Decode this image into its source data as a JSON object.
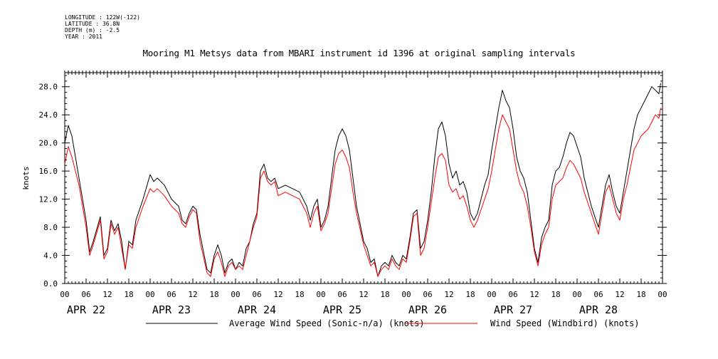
{
  "header": {
    "meta_lines": [
      "LONGITUDE : 122W(-122)",
      "LATITUDE : 36.8N",
      "DEPTH (m) : -2.5",
      "YEAR : 2011"
    ],
    "title": "Mooring M1 Metsys data from MBARI instrument id 1396 at original sampling intervals"
  },
  "chart_data": {
    "type": "line",
    "ylabel": "knots",
    "xlabel": "",
    "ylim": [
      0,
      30
    ],
    "y_ticks": [
      "0.0",
      "4.0",
      "8.0",
      "12.0",
      "16.0",
      "20.0",
      "24.0",
      "28.0"
    ],
    "x_hour_ticks": [
      "00",
      "06",
      "12",
      "18",
      "00",
      "06",
      "12",
      "18",
      "00",
      "06",
      "12",
      "18",
      "00",
      "06",
      "12",
      "18",
      "00",
      "06",
      "12",
      "18",
      "00",
      "06",
      "12",
      "18",
      "00",
      "06",
      "12",
      "18",
      "00"
    ],
    "day_labels": [
      "APR 22",
      "APR 23",
      "APR 24",
      "APR 25",
      "APR 26",
      "APR 27",
      "APR 28"
    ],
    "x_unit": "hours since APR 22 00:00",
    "xlim": [
      0,
      168
    ],
    "series": [
      {
        "name": "Average Wind Speed (Sonic-n/a) (knots)",
        "color": "#000000",
        "points": [
          [
            0,
            20
          ],
          [
            1,
            22.5
          ],
          [
            2,
            21
          ],
          [
            4,
            15
          ],
          [
            6,
            9
          ],
          [
            7,
            4.5
          ],
          [
            8,
            6
          ],
          [
            10,
            9.5
          ],
          [
            11,
            4
          ],
          [
            12,
            5
          ],
          [
            13,
            9
          ],
          [
            14,
            7.5
          ],
          [
            15,
            8.5
          ],
          [
            16,
            6
          ],
          [
            17,
            2
          ],
          [
            18,
            6
          ],
          [
            19,
            5.5
          ],
          [
            20,
            9
          ],
          [
            22,
            12
          ],
          [
            24,
            15.5
          ],
          [
            25,
            14.5
          ],
          [
            26,
            15
          ],
          [
            28,
            14
          ],
          [
            30,
            12
          ],
          [
            32,
            11
          ],
          [
            33,
            9
          ],
          [
            34,
            8.5
          ],
          [
            35,
            10
          ],
          [
            36,
            11
          ],
          [
            37,
            10.5
          ],
          [
            38,
            7
          ],
          [
            40,
            2
          ],
          [
            41,
            1.5
          ],
          [
            42,
            4
          ],
          [
            43,
            5.5
          ],
          [
            44,
            4
          ],
          [
            45,
            1.5
          ],
          [
            46,
            3
          ],
          [
            47,
            3.5
          ],
          [
            48,
            2
          ],
          [
            49,
            3
          ],
          [
            50,
            2.5
          ],
          [
            51,
            5
          ],
          [
            52,
            6
          ],
          [
            53,
            8.5
          ],
          [
            54,
            10
          ],
          [
            55,
            16
          ],
          [
            56,
            17
          ],
          [
            57,
            15
          ],
          [
            58,
            14.5
          ],
          [
            59,
            15
          ],
          [
            60,
            13.5
          ],
          [
            62,
            14
          ],
          [
            64,
            13.5
          ],
          [
            66,
            13
          ],
          [
            68,
            11
          ],
          [
            69,
            9
          ],
          [
            70,
            11
          ],
          [
            71,
            12
          ],
          [
            72,
            8
          ],
          [
            73,
            9
          ],
          [
            74,
            11
          ],
          [
            76,
            19
          ],
          [
            77,
            21
          ],
          [
            78,
            22
          ],
          [
            79,
            21
          ],
          [
            80,
            19
          ],
          [
            81,
            15
          ],
          [
            82,
            11
          ],
          [
            84,
            6
          ],
          [
            85,
            5
          ],
          [
            86,
            3
          ],
          [
            87,
            3.5
          ],
          [
            88,
            1
          ],
          [
            89,
            2.5
          ],
          [
            90,
            3
          ],
          [
            91,
            2.5
          ],
          [
            92,
            4
          ],
          [
            93,
            3
          ],
          [
            94,
            2.5
          ],
          [
            95,
            4
          ],
          [
            96,
            3.5
          ],
          [
            97,
            6.5
          ],
          [
            98,
            10
          ],
          [
            99,
            10.5
          ],
          [
            100,
            5
          ],
          [
            101,
            6
          ],
          [
            102,
            9
          ],
          [
            103,
            13
          ],
          [
            104,
            18
          ],
          [
            105,
            22
          ],
          [
            106,
            23
          ],
          [
            107,
            21
          ],
          [
            108,
            17
          ],
          [
            109,
            15
          ],
          [
            110,
            16
          ],
          [
            111,
            14
          ],
          [
            112,
            14.5
          ],
          [
            113,
            13
          ],
          [
            114,
            10
          ],
          [
            115,
            9
          ],
          [
            116,
            10
          ],
          [
            117,
            12
          ],
          [
            118,
            14
          ],
          [
            119,
            15.5
          ],
          [
            120,
            19
          ],
          [
            121,
            22
          ],
          [
            122,
            25
          ],
          [
            123,
            27.5
          ],
          [
            124,
            26
          ],
          [
            125,
            25
          ],
          [
            126,
            22
          ],
          [
            127,
            18
          ],
          [
            128,
            16
          ],
          [
            129,
            15
          ],
          [
            130,
            13
          ],
          [
            131,
            9
          ],
          [
            132,
            5
          ],
          [
            133,
            3
          ],
          [
            134,
            6.5
          ],
          [
            135,
            8
          ],
          [
            136,
            9
          ],
          [
            137,
            14
          ],
          [
            138,
            16
          ],
          [
            139,
            16.5
          ],
          [
            140,
            18
          ],
          [
            141,
            20
          ],
          [
            142,
            21.5
          ],
          [
            143,
            21
          ],
          [
            144,
            19.5
          ],
          [
            145,
            18
          ],
          [
            146,
            15
          ],
          [
            147,
            13
          ],
          [
            148,
            11
          ],
          [
            149,
            9.5
          ],
          [
            150,
            8
          ],
          [
            151,
            11
          ],
          [
            152,
            14
          ],
          [
            153,
            15.5
          ],
          [
            154,
            13
          ],
          [
            155,
            11
          ],
          [
            156,
            10
          ],
          [
            157,
            13
          ],
          [
            158,
            16
          ],
          [
            159,
            19
          ],
          [
            160,
            22
          ],
          [
            161,
            24
          ],
          [
            162,
            25
          ],
          [
            163,
            26
          ],
          [
            164,
            27
          ],
          [
            165,
            28
          ],
          [
            166,
            27.5
          ],
          [
            167,
            27
          ],
          [
            167.5,
            28.5
          ]
        ]
      },
      {
        "name": "Wind Speed (Windbird) (knots)",
        "color": "#ff0000",
        "points": [
          [
            0,
            17
          ],
          [
            1,
            19.5
          ],
          [
            2,
            18
          ],
          [
            4,
            14
          ],
          [
            6,
            8
          ],
          [
            7,
            4
          ],
          [
            8,
            5.5
          ],
          [
            10,
            9
          ],
          [
            11,
            3.5
          ],
          [
            12,
            4.5
          ],
          [
            13,
            8.5
          ],
          [
            14,
            7
          ],
          [
            15,
            8
          ],
          [
            16,
            5
          ],
          [
            17,
            2
          ],
          [
            18,
            5.5
          ],
          [
            19,
            5
          ],
          [
            20,
            8
          ],
          [
            22,
            11
          ],
          [
            24,
            13.5
          ],
          [
            25,
            13
          ],
          [
            26,
            13.5
          ],
          [
            28,
            12.5
          ],
          [
            30,
            11
          ],
          [
            32,
            10
          ],
          [
            33,
            8.5
          ],
          [
            34,
            8
          ],
          [
            35,
            9.5
          ],
          [
            36,
            10.5
          ],
          [
            37,
            10
          ],
          [
            38,
            6
          ],
          [
            40,
            1.5
          ],
          [
            41,
            1
          ],
          [
            42,
            3.5
          ],
          [
            43,
            4.5
          ],
          [
            44,
            3
          ],
          [
            45,
            1
          ],
          [
            46,
            2.5
          ],
          [
            47,
            3
          ],
          [
            48,
            2
          ],
          [
            49,
            2.5
          ],
          [
            50,
            2
          ],
          [
            51,
            4
          ],
          [
            52,
            6
          ],
          [
            53,
            8
          ],
          [
            54,
            9.5
          ],
          [
            55,
            15
          ],
          [
            56,
            16
          ],
          [
            57,
            14.5
          ],
          [
            58,
            14
          ],
          [
            59,
            14.5
          ],
          [
            60,
            12.5
          ],
          [
            62,
            13
          ],
          [
            64,
            12.5
          ],
          [
            66,
            12
          ],
          [
            68,
            10
          ],
          [
            69,
            8
          ],
          [
            70,
            10
          ],
          [
            71,
            11
          ],
          [
            72,
            7.5
          ],
          [
            73,
            8.5
          ],
          [
            74,
            10
          ],
          [
            76,
            17
          ],
          [
            77,
            18.5
          ],
          [
            78,
            19
          ],
          [
            79,
            18
          ],
          [
            80,
            16.5
          ],
          [
            81,
            13
          ],
          [
            82,
            10
          ],
          [
            84,
            5.5
          ],
          [
            85,
            4
          ],
          [
            86,
            2.5
          ],
          [
            87,
            3
          ],
          [
            88,
            1
          ],
          [
            89,
            2
          ],
          [
            90,
            2.5
          ],
          [
            91,
            2
          ],
          [
            92,
            3.5
          ],
          [
            93,
            2.5
          ],
          [
            94,
            2
          ],
          [
            95,
            3.5
          ],
          [
            96,
            3
          ],
          [
            97,
            6
          ],
          [
            98,
            9.5
          ],
          [
            99,
            10
          ],
          [
            100,
            4
          ],
          [
            101,
            5
          ],
          [
            102,
            8
          ],
          [
            103,
            11.5
          ],
          [
            104,
            15
          ],
          [
            105,
            18
          ],
          [
            106,
            18.5
          ],
          [
            107,
            17.5
          ],
          [
            108,
            14
          ],
          [
            109,
            13
          ],
          [
            110,
            13.5
          ],
          [
            111,
            12
          ],
          [
            112,
            12.5
          ],
          [
            113,
            11
          ],
          [
            114,
            9
          ],
          [
            115,
            8
          ],
          [
            116,
            9
          ],
          [
            117,
            10.5
          ],
          [
            118,
            12
          ],
          [
            119,
            13.5
          ],
          [
            120,
            16
          ],
          [
            121,
            19
          ],
          [
            122,
            22
          ],
          [
            123,
            24
          ],
          [
            124,
            23
          ],
          [
            125,
            22
          ],
          [
            126,
            19
          ],
          [
            127,
            16
          ],
          [
            128,
            14
          ],
          [
            129,
            13
          ],
          [
            130,
            11
          ],
          [
            131,
            8
          ],
          [
            132,
            4.5
          ],
          [
            133,
            2.5
          ],
          [
            134,
            5.5
          ],
          [
            135,
            7
          ],
          [
            136,
            8
          ],
          [
            137,
            12
          ],
          [
            138,
            14
          ],
          [
            139,
            14.5
          ],
          [
            140,
            15
          ],
          [
            141,
            16.5
          ],
          [
            142,
            17.5
          ],
          [
            143,
            17
          ],
          [
            144,
            16
          ],
          [
            145,
            15
          ],
          [
            146,
            13
          ],
          [
            147,
            11.5
          ],
          [
            148,
            10
          ],
          [
            149,
            8.5
          ],
          [
            150,
            7
          ],
          [
            151,
            10
          ],
          [
            152,
            13
          ],
          [
            153,
            14
          ],
          [
            154,
            12
          ],
          [
            155,
            10
          ],
          [
            156,
            9
          ],
          [
            157,
            12
          ],
          [
            158,
            14
          ],
          [
            159,
            16.5
          ],
          [
            160,
            19
          ],
          [
            161,
            20
          ],
          [
            162,
            21
          ],
          [
            163,
            21.5
          ],
          [
            164,
            22
          ],
          [
            165,
            23
          ],
          [
            166,
            24
          ],
          [
            167,
            23.5
          ],
          [
            167.5,
            25
          ]
        ]
      }
    ],
    "legend_position": "bottom",
    "grid": false
  }
}
